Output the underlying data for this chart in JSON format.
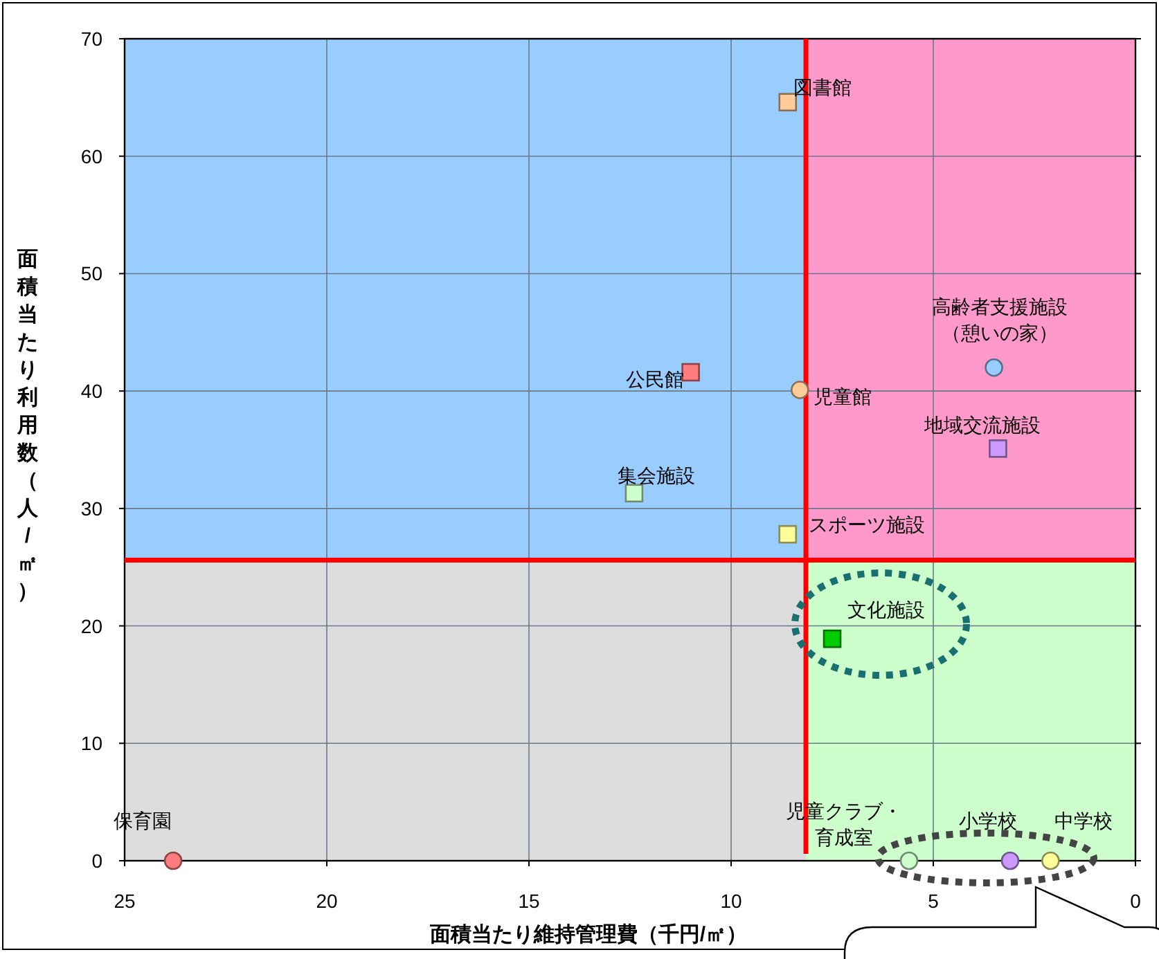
{
  "chart_data": {
    "type": "scatter",
    "xlabel": "面積当たり維持管理費（千円/㎡）",
    "ylabel": "面積当たり利用数（人/㎡）",
    "xlim": [
      25,
      0
    ],
    "xticks": [
      25,
      20,
      15,
      10,
      5,
      0
    ],
    "ylim": [
      0,
      70
    ],
    "yticks": [
      0,
      10,
      20,
      30,
      40,
      50,
      60,
      70
    ],
    "grid": true,
    "ref_lines": [
      {
        "axis": "x",
        "value": 8.15,
        "color": "#ff0000"
      },
      {
        "axis": "y",
        "value": 25.6,
        "color": "#ff0000"
      }
    ],
    "series": [
      {
        "name": "図書館",
        "color": "#ffcc99",
        "marker": "square",
        "x": [
          8.6
        ],
        "values": [
          64.6
        ]
      },
      {
        "name": "公民館",
        "color": "#ff7c80",
        "marker": "square",
        "x": [
          11.0
        ],
        "values": [
          41.6
        ]
      },
      {
        "name": "児童館",
        "color": "#ffcc99",
        "marker": "circle",
        "x": [
          8.3
        ],
        "values": [
          40.1
        ]
      },
      {
        "name": "集会施設",
        "color": "#ccffcc",
        "marker": "square",
        "x": [
          12.4
        ],
        "values": [
          31.3
        ]
      },
      {
        "name": "スポーツ施設",
        "color": "#ffff99",
        "marker": "square",
        "x": [
          8.6
        ],
        "values": [
          27.8
        ]
      },
      {
        "name": "高齢者支援施設（憩いの家）",
        "color": "#99ccff",
        "marker": "circle",
        "x": [
          3.5
        ],
        "values": [
          42.0
        ]
      },
      {
        "name": "地域交流施設",
        "color": "#cc99ff",
        "marker": "square",
        "x": [
          3.4
        ],
        "values": [
          35.1
        ]
      },
      {
        "name": "文化施設",
        "color": "#00cc00",
        "marker": "square",
        "x": [
          7.5
        ],
        "values": [
          18.9
        ]
      },
      {
        "name": "保育園",
        "color": "#ff7c80",
        "marker": "circle",
        "x": [
          23.8
        ],
        "values": [
          0
        ]
      },
      {
        "name": "児童クラブ・育成室",
        "color": "#ccffcc",
        "marker": "circle",
        "x": [
          5.6
        ],
        "values": [
          0
        ]
      },
      {
        "name": "小学校",
        "color": "#cc99ff",
        "marker": "circle",
        "x": [
          3.1
        ],
        "values": [
          0
        ]
      },
      {
        "name": "中学校",
        "color": "#ffff99",
        "marker": "circle",
        "x": [
          2.1
        ],
        "values": [
          0
        ]
      }
    ]
  }
}
